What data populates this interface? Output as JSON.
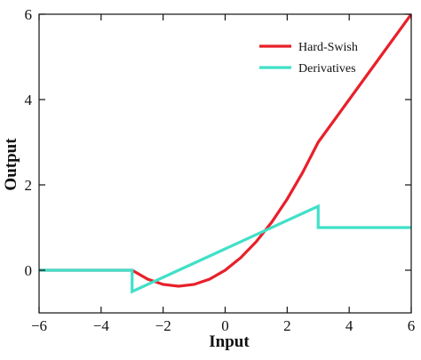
{
  "chart_data": {
    "type": "line",
    "title": "",
    "xlabel": "Input",
    "ylabel": "Output",
    "xlim": [
      -6,
      6
    ],
    "ylim": [
      -1,
      6
    ],
    "xticks": [
      -6,
      -4,
      -2,
      0,
      2,
      4,
      6
    ],
    "yticks": [
      0,
      2,
      4,
      6
    ],
    "xtick_labels": [
      "−6",
      "−4",
      "−2",
      "0",
      "2",
      "4",
      "6"
    ],
    "ytick_labels": [
      "0",
      "2",
      "4",
      "6"
    ],
    "grid": false,
    "legend_position": "top-right",
    "series": [
      {
        "name": "Hard-Swish",
        "color": "#e8202a",
        "x": [
          -6,
          -3,
          -2.5,
          -2,
          -1.5,
          -1,
          -0.5,
          0,
          0.5,
          1,
          1.5,
          2,
          2.5,
          3,
          4,
          5,
          6
        ],
        "y": [
          0,
          0,
          -0.208,
          -0.333,
          -0.375,
          -0.333,
          -0.208,
          0,
          0.292,
          0.667,
          1.125,
          1.667,
          2.292,
          3,
          4,
          5,
          6
        ]
      },
      {
        "name": "Derivatives",
        "color": "#40e0c8",
        "x": [
          -6,
          -3,
          -3,
          3,
          3,
          6
        ],
        "y": [
          0,
          0,
          -0.5,
          1.5,
          1,
          1
        ]
      }
    ]
  }
}
